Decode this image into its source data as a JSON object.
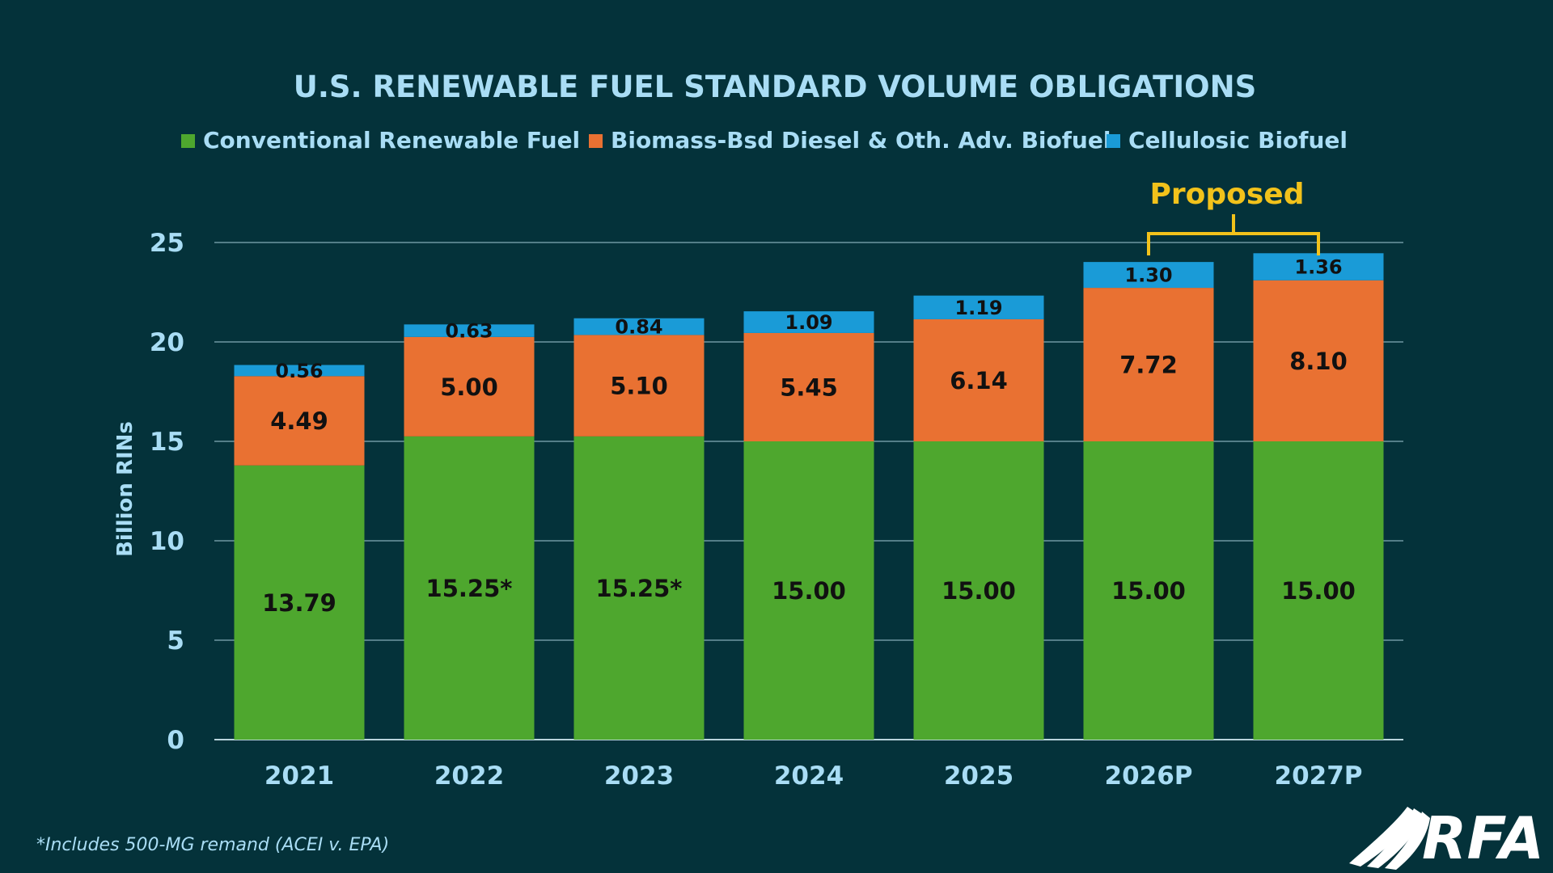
{
  "chart_data": {
    "type": "bar",
    "stacked": true,
    "title": "U.S. RENEWABLE FUEL STANDARD VOLUME OBLIGATIONS",
    "ylabel": "Billion RINs",
    "ylim": [
      0,
      25
    ],
    "yticks": [
      0,
      5,
      10,
      15,
      20,
      25
    ],
    "grid": true,
    "legend_position": "top",
    "categories": [
      "2021",
      "2022",
      "2023",
      "2024",
      "2025",
      "2026P",
      "2027P"
    ],
    "series": [
      {
        "name": "Conventional Renewable Fuel",
        "color": "#4ea72e",
        "values": [
          13.79,
          15.25,
          15.25,
          15.0,
          15.0,
          15.0,
          15.0
        ],
        "labels": [
          "13.79",
          "15.25*",
          "15.25*",
          "15.00",
          "15.00",
          "15.00",
          "15.00"
        ]
      },
      {
        "name": "Biomass-Bsd Diesel & Oth. Adv. Biofuel",
        "color": "#e97132",
        "values": [
          4.49,
          5.0,
          5.1,
          5.45,
          6.14,
          7.72,
          8.1
        ],
        "labels": [
          "4.49",
          "5.00",
          "5.10",
          "5.45",
          "6.14",
          "7.72",
          "8.10"
        ]
      },
      {
        "name": "Cellulosic Biofuel",
        "color": "#1a9bd7",
        "values": [
          0.56,
          0.63,
          0.84,
          1.09,
          1.19,
          1.3,
          1.36
        ],
        "labels": [
          "0.56",
          "0.63",
          "0.84",
          "1.09",
          "1.19",
          "1.30",
          "1.36"
        ]
      }
    ],
    "annotation": {
      "text": "Proposed",
      "categories": [
        "2026P",
        "2027P"
      ],
      "color": "#f2c21b"
    }
  },
  "footnote": "*Includes 500-MG remand (ACEI v. EPA)",
  "logo": {
    "text": "RFA",
    "icon": "rfa-swoosh-logo-icon"
  }
}
